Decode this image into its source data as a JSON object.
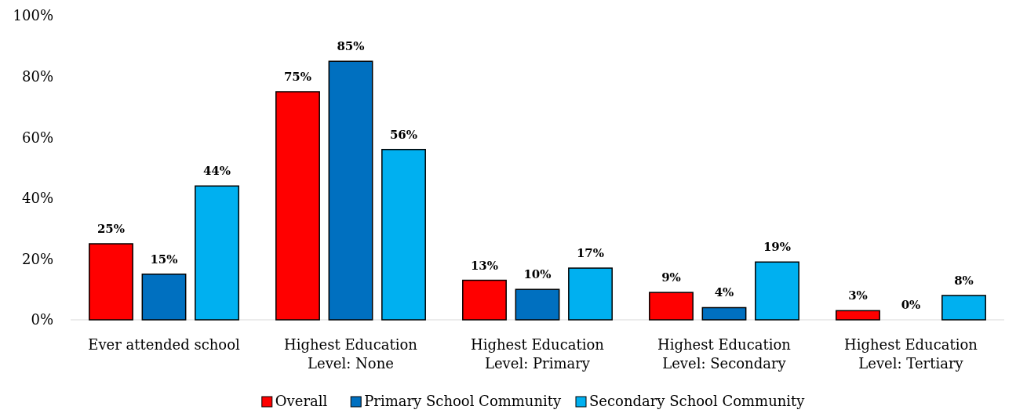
{
  "chart_data": {
    "type": "bar",
    "categories": [
      "Ever attended school",
      "Highest Education Level: None",
      "Highest Education Level: Primary",
      "Highest Education Level: Secondary",
      "Highest Education Level: Tertiary"
    ],
    "series": [
      {
        "name": "Overall",
        "color": "#ff0000",
        "values": [
          25,
          75,
          13,
          9,
          3
        ],
        "value_labels": [
          "25%",
          "75%",
          "13%",
          "9%",
          "3%"
        ]
      },
      {
        "name": "Primary School Community",
        "color": "#0070c0",
        "values": [
          15,
          85,
          10,
          4,
          0
        ],
        "value_labels": [
          "15%",
          "85%",
          "10%",
          "4%",
          "0%"
        ]
      },
      {
        "name": "Secondary School Community",
        "color": "#00b0f0",
        "values": [
          44,
          56,
          17,
          19,
          8
        ],
        "value_labels": [
          "44%",
          "56%",
          "17%",
          "19%",
          "8%"
        ]
      }
    ],
    "ylim": [
      0,
      100
    ],
    "yticks": [
      {
        "value": 0,
        "label": "0%"
      },
      {
        "value": 20,
        "label": "20%"
      },
      {
        "value": 40,
        "label": "40%"
      },
      {
        "value": 60,
        "label": "60%"
      },
      {
        "value": 80,
        "label": "80%"
      },
      {
        "value": 100,
        "label": "100%"
      }
    ],
    "grid": false,
    "legend": "bottom"
  }
}
